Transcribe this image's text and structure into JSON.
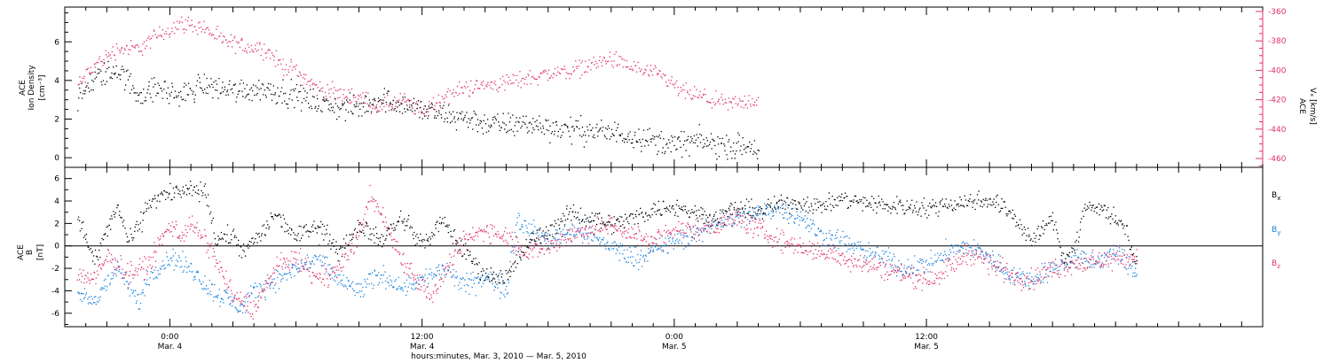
{
  "chart_data": [
    {
      "type": "scatter",
      "panel": "top",
      "x_range_hours": [
        -5.0,
        52.0
      ],
      "left_axis": {
        "label_lines": [
          "ACE",
          "Ion Density",
          "[cm⁻³]"
        ],
        "ylim": [
          -0.5,
          7.8
        ],
        "ticks": [
          0,
          2,
          4,
          6
        ],
        "tick_labels": [
          "0",
          "2",
          "4",
          "6"
        ],
        "color": "#000000"
      },
      "right_axis": {
        "label_lines": [
          "ACE",
          "Vₓ [km/s]"
        ],
        "ylim": [
          -466,
          -357
        ],
        "ticks": [
          -360,
          -380,
          -400,
          -420,
          -440,
          -460
        ],
        "tick_labels": [
          "-360",
          "-380",
          "-400",
          "-420",
          "-440",
          "-460"
        ],
        "color": "#e0336a"
      },
      "series": [
        {
          "axis": "left",
          "color": "#000000",
          "anchors": [
            [
              -4.4,
              3.0
            ],
            [
              -3.5,
              4.2
            ],
            [
              -2.5,
              4.6
            ],
            [
              -1.5,
              3.3
            ],
            [
              -0.5,
              3.6
            ],
            [
              0.5,
              3.2
            ],
            [
              1.5,
              3.8
            ],
            [
              3.0,
              3.5
            ],
            [
              4.5,
              3.6
            ],
            [
              5.5,
              3.4
            ],
            [
              7,
              2.9
            ],
            [
              8,
              2.6
            ],
            [
              9,
              2.6
            ],
            [
              10,
              3.1
            ],
            [
              11,
              2.8
            ],
            [
              12,
              2.5
            ],
            [
              13,
              2.2
            ],
            [
              14,
              2.1
            ],
            [
              15,
              1.8
            ],
            [
              16,
              1.7
            ],
            [
              17,
              1.8
            ],
            [
              18,
              1.6
            ],
            [
              19,
              1.5
            ],
            [
              20,
              1.4
            ],
            [
              21,
              1.3
            ],
            [
              22,
              1.2
            ],
            [
              23,
              0.9
            ],
            [
              24,
              0.7
            ],
            [
              25,
              0.9
            ],
            [
              26,
              0.7
            ],
            [
              27,
              0.6
            ],
            [
              28,
              0.5
            ]
          ],
          "spread": 0.55,
          "x_end": 28.0
        },
        {
          "axis": "right",
          "color": "#e0336a",
          "anchors": [
            [
              -4.4,
              -410
            ],
            [
              -3.5,
              -395
            ],
            [
              -2.5,
              -385
            ],
            [
              -1.5,
              -385
            ],
            [
              -0.5,
              -375
            ],
            [
              0.5,
              -368
            ],
            [
              1.5,
              -370
            ],
            [
              2.5,
              -380
            ],
            [
              3.5,
              -383
            ],
            [
              4.5,
              -385
            ],
            [
              5.2,
              -395
            ],
            [
              6,
              -400
            ],
            [
              7,
              -412
            ],
            [
              8,
              -416
            ],
            [
              9,
              -418
            ],
            [
              10,
              -425
            ],
            [
              11,
              -420
            ],
            [
              12,
              -428
            ],
            [
              13,
              -418
            ],
            [
              14,
              -412
            ],
            [
              15,
              -410
            ],
            [
              16,
              -408
            ],
            [
              17,
              -405
            ],
            [
              18,
              -402
            ],
            [
              19,
              -400
            ],
            [
              20,
              -396
            ],
            [
              21,
              -392
            ],
            [
              21.6,
              -396
            ],
            [
              22.5,
              -400
            ],
            [
              23.5,
              -405
            ],
            [
              24.3,
              -414
            ],
            [
              25.3,
              -418
            ],
            [
              26.5,
              -423
            ],
            [
              27.8,
              -420
            ]
          ],
          "spread": 5.0,
          "x_end": 28.0
        }
      ]
    },
    {
      "type": "scatter",
      "panel": "bottom",
      "x_range_hours": [
        -5.0,
        52.0
      ],
      "left_axis": {
        "label_lines": [
          "ACE",
          "B",
          "[nT]"
        ],
        "ylim": [
          -7.2,
          7.0
        ],
        "ticks": [
          -6,
          -4,
          -2,
          0,
          2,
          4,
          6
        ],
        "tick_labels": [
          "-6",
          "-4",
          "-2",
          "0",
          "2",
          "4",
          "6"
        ],
        "color": "#000000"
      },
      "zero_line": true,
      "legend_placement": "right",
      "series": [
        {
          "name": "Bx",
          "color": "#000000",
          "anchors": [
            [
              -4.4,
              2.8
            ],
            [
              -3.6,
              -1.5
            ],
            [
              -3.0,
              1.5
            ],
            [
              -2.5,
              3.5
            ],
            [
              -2.0,
              0.5
            ],
            [
              -1.5,
              1.8
            ],
            [
              -1.0,
              4.0
            ],
            [
              0.0,
              4.8
            ],
            [
              1.0,
              4.9
            ],
            [
              1.7,
              4.8
            ],
            [
              2.2,
              0.5
            ],
            [
              3.0,
              1.0
            ],
            [
              3.5,
              -0.5
            ],
            [
              4.5,
              1.5
            ],
            [
              5.0,
              3.0
            ],
            [
              6.0,
              0.8
            ],
            [
              7.0,
              2.2
            ],
            [
              8.0,
              -0.5
            ],
            [
              9.0,
              2.0
            ],
            [
              10.0,
              0.5
            ],
            [
              11.0,
              2.5
            ],
            [
              12.0,
              0.2
            ],
            [
              13.0,
              2.2
            ],
            [
              14.0,
              -0.5
            ],
            [
              15.0,
              -2.5
            ],
            [
              16.0,
              -2.8
            ],
            [
              17.0,
              0.2
            ],
            [
              18.0,
              1.5
            ],
            [
              19.0,
              2.8
            ],
            [
              20.0,
              2.6
            ],
            [
              21.0,
              2.0
            ],
            [
              22.0,
              2.5
            ],
            [
              23.0,
              3.3
            ],
            [
              24.0,
              3.5
            ],
            [
              25.0,
              3.0
            ],
            [
              26.0,
              2.6
            ],
            [
              27.0,
              3.4
            ],
            [
              28.0,
              3.1
            ],
            [
              29.0,
              3.8
            ],
            [
              30.0,
              3.9
            ],
            [
              31.0,
              3.6
            ],
            [
              32.0,
              4.2
            ],
            [
              33.0,
              3.9
            ],
            [
              34.0,
              3.6
            ],
            [
              35.0,
              3.6
            ],
            [
              36.0,
              3.4
            ],
            [
              37.0,
              3.8
            ],
            [
              38.0,
              4.0
            ],
            [
              39.0,
              4.2
            ],
            [
              40.0,
              3.0
            ],
            [
              41.0,
              0.5
            ],
            [
              42.0,
              2.5
            ],
            [
              42.5,
              -1.0
            ],
            [
              43.0,
              -0.5
            ],
            [
              43.5,
              3.5
            ],
            [
              44.5,
              3.3
            ],
            [
              45.5,
              1.5
            ],
            [
              46.0,
              -2.0
            ]
          ],
          "spread": 0.7,
          "x_end": 46.0
        },
        {
          "name": "By",
          "color": "#1a82dc",
          "anchors": [
            [
              -4.4,
              -4.5
            ],
            [
              -3.6,
              -5.0
            ],
            [
              -3.0,
              -3.0
            ],
            [
              -2.5,
              -2.0
            ],
            [
              -2.0,
              -3.5
            ],
            [
              -1.5,
              -5.0
            ],
            [
              -1.0,
              -2.5
            ],
            [
              0.0,
              -1.0
            ],
            [
              1.0,
              -2.0
            ],
            [
              2.0,
              -4.0
            ],
            [
              3.0,
              -5.0
            ],
            [
              3.5,
              -5.5
            ],
            [
              4.0,
              -4.0
            ],
            [
              5.0,
              -3.0
            ],
            [
              6.0,
              -2.0
            ],
            [
              7.0,
              -1.0
            ],
            [
              8.0,
              -3.0
            ],
            [
              9.0,
              -4.0
            ],
            [
              10.0,
              -2.5
            ],
            [
              11.0,
              -3.5
            ],
            [
              12.0,
              -3.0
            ],
            [
              13.0,
              -2.0
            ],
            [
              14.0,
              -3.5
            ],
            [
              15.0,
              -2.8
            ],
            [
              16.0,
              -3.8
            ],
            [
              16.5,
              2.5
            ],
            [
              17.0,
              1.5
            ],
            [
              18.0,
              0.5
            ],
            [
              19.0,
              1.5
            ],
            [
              20.0,
              1.0
            ],
            [
              21.0,
              0.0
            ],
            [
              22.0,
              -1.0
            ],
            [
              23.0,
              -0.5
            ],
            [
              24.0,
              0.5
            ],
            [
              25.0,
              1.0
            ],
            [
              26.0,
              2.2
            ],
            [
              27.0,
              2.5
            ],
            [
              28.0,
              3.0
            ],
            [
              29.0,
              3.5
            ],
            [
              30.0,
              2.5
            ],
            [
              31.0,
              1.0
            ],
            [
              32.0,
              0.5
            ],
            [
              33.0,
              -0.5
            ],
            [
              34.0,
              -1.0
            ],
            [
              35.0,
              -2.0
            ],
            [
              36.0,
              -1.5
            ],
            [
              37.0,
              -0.5
            ],
            [
              38.0,
              0.0
            ],
            [
              39.0,
              -1.0
            ],
            [
              40.0,
              -2.5
            ],
            [
              41.0,
              -3.0
            ],
            [
              42.0,
              -2.0
            ],
            [
              43.0,
              -1.0
            ],
            [
              44.0,
              -1.5
            ],
            [
              45.0,
              -0.5
            ],
            [
              46.0,
              -2.5
            ]
          ],
          "spread": 0.8,
          "x_end": 46.0
        },
        {
          "name": "Bz",
          "color": "#e0336a",
          "anchors": [
            [
              -4.4,
              -2.5
            ],
            [
              -3.6,
              -3.0
            ],
            [
              -3.0,
              -1.0
            ],
            [
              -2.5,
              -1.5
            ],
            [
              -2.0,
              -2.5
            ],
            [
              -1.0,
              -1.5
            ],
            [
              0.0,
              2.0
            ],
            [
              0.5,
              1.0
            ],
            [
              1.0,
              2.0
            ],
            [
              2.0,
              -0.5
            ],
            [
              3.0,
              -4.5
            ],
            [
              4.0,
              -5.5
            ],
            [
              5.0,
              -2.0
            ],
            [
              6.0,
              -1.0
            ],
            [
              7.0,
              -3.0
            ],
            [
              8.0,
              -2.0
            ],
            [
              9.0,
              1.0
            ],
            [
              9.5,
              4.5
            ],
            [
              10.0,
              3.0
            ],
            [
              11.0,
              -1.0
            ],
            [
              12.0,
              -3.5
            ],
            [
              12.5,
              -4.5
            ],
            [
              13.0,
              -2.5
            ],
            [
              14.0,
              0.5
            ],
            [
              15.0,
              1.5
            ],
            [
              16.0,
              1.0
            ],
            [
              17.0,
              -0.5
            ],
            [
              18.0,
              0.0
            ],
            [
              19.0,
              1.0
            ],
            [
              20.0,
              1.5
            ],
            [
              21.0,
              2.0
            ],
            [
              22.0,
              1.0
            ],
            [
              23.0,
              0.5
            ],
            [
              24.0,
              1.5
            ],
            [
              25.0,
              1.5
            ],
            [
              26.0,
              2.0
            ],
            [
              27.0,
              2.5
            ],
            [
              28.0,
              1.5
            ],
            [
              29.0,
              0.5
            ],
            [
              30.0,
              0.0
            ],
            [
              31.0,
              -0.5
            ],
            [
              32.0,
              -1.0
            ],
            [
              33.0,
              -1.5
            ],
            [
              34.0,
              -2.0
            ],
            [
              35.0,
              -2.5
            ],
            [
              36.0,
              -3.0
            ],
            [
              37.0,
              -2.0
            ],
            [
              38.0,
              -0.5
            ],
            [
              39.0,
              -1.5
            ],
            [
              40.0,
              -2.5
            ],
            [
              41.0,
              -3.0
            ],
            [
              42.0,
              -2.0
            ],
            [
              43.0,
              -1.5
            ],
            [
              44.0,
              -1.5
            ],
            [
              45.0,
              -1.0
            ],
            [
              46.0,
              -1.0
            ]
          ],
          "spread": 0.8,
          "x_end": 46.0
        }
      ]
    }
  ],
  "legend": [
    {
      "key": "bx",
      "base": "B",
      "sub": "x",
      "color": "#000000"
    },
    {
      "key": "by",
      "base": "B",
      "sub": "y",
      "color": "#1a82dc"
    },
    {
      "key": "bz",
      "base": "B",
      "sub": "z",
      "color": "#e0336a"
    }
  ],
  "x_axis": {
    "major_hours": [
      0,
      12,
      24,
      36
    ],
    "minor_step_hours": 1,
    "tick_labels": [
      {
        "hours": 0,
        "time": "0:00",
        "date": "Mar. 4"
      },
      {
        "hours": 12,
        "time": "12:00",
        "date": "Mar. 4"
      },
      {
        "hours": 24,
        "time": "0:00",
        "date": "Mar. 5"
      },
      {
        "hours": 36,
        "time": "12:00",
        "date": "Mar. 5"
      }
    ],
    "title": "hours:minutes, Mar.  3, 2010 — Mar.  5, 2010"
  }
}
